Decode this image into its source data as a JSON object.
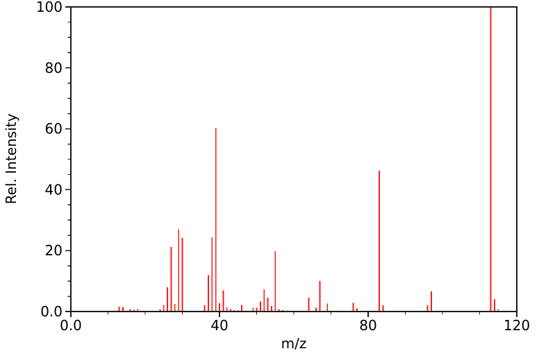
{
  "chart_data": {
    "type": "bar",
    "subtype": "mass-spectrum-stick-plot",
    "title": "",
    "xlabel": "m/z",
    "ylabel": "Rel. Intensity",
    "xlim": [
      0,
      120
    ],
    "ylim": [
      0,
      100
    ],
    "grid": false,
    "legend": "none",
    "x_major_ticks": [
      {
        "value": 0,
        "label": "0.0"
      },
      {
        "value": 40,
        "label": "40"
      },
      {
        "value": 80,
        "label": "80"
      },
      {
        "value": 120,
        "label": "120"
      }
    ],
    "x_minor_tick_step": 10,
    "y_major_ticks": [
      {
        "value": 0,
        "label": "0.0"
      },
      {
        "value": 20,
        "label": "20"
      },
      {
        "value": 40,
        "label": "40"
      },
      {
        "value": 60,
        "label": "60"
      },
      {
        "value": 80,
        "label": "80"
      },
      {
        "value": 100,
        "label": "100"
      }
    ],
    "y_minor_tick_step": 5,
    "peaks": [
      {
        "mz": 13,
        "intensity": 1.6
      },
      {
        "mz": 14,
        "intensity": 1.5
      },
      {
        "mz": 16,
        "intensity": 0.8
      },
      {
        "mz": 17,
        "intensity": 0.6
      },
      {
        "mz": 18,
        "intensity": 0.8
      },
      {
        "mz": 24,
        "intensity": 0.7
      },
      {
        "mz": 25,
        "intensity": 2.2
      },
      {
        "mz": 26,
        "intensity": 8.0
      },
      {
        "mz": 27,
        "intensity": 21.2
      },
      {
        "mz": 28,
        "intensity": 2.5
      },
      {
        "mz": 29,
        "intensity": 27.0
      },
      {
        "mz": 30,
        "intensity": 24.2
      },
      {
        "mz": 36,
        "intensity": 2.0
      },
      {
        "mz": 37,
        "intensity": 12.0
      },
      {
        "mz": 38,
        "intensity": 24.4
      },
      {
        "mz": 39,
        "intensity": 60.2
      },
      {
        "mz": 40,
        "intensity": 2.7
      },
      {
        "mz": 41,
        "intensity": 7.0
      },
      {
        "mz": 42,
        "intensity": 1.4
      },
      {
        "mz": 43,
        "intensity": 0.8
      },
      {
        "mz": 44,
        "intensity": 0.5
      },
      {
        "mz": 45,
        "intensity": 0.5
      },
      {
        "mz": 46,
        "intensity": 2.2
      },
      {
        "mz": 49,
        "intensity": 1.2
      },
      {
        "mz": 50,
        "intensity": 1.2
      },
      {
        "mz": 51,
        "intensity": 3.3
      },
      {
        "mz": 52,
        "intensity": 7.3
      },
      {
        "mz": 53,
        "intensity": 4.6
      },
      {
        "mz": 54,
        "intensity": 1.8
      },
      {
        "mz": 55,
        "intensity": 19.8
      },
      {
        "mz": 56,
        "intensity": 0.8
      },
      {
        "mz": 57,
        "intensity": 0.5
      },
      {
        "mz": 64,
        "intensity": 4.6
      },
      {
        "mz": 66,
        "intensity": 1.3
      },
      {
        "mz": 67,
        "intensity": 10.0
      },
      {
        "mz": 69,
        "intensity": 2.6
      },
      {
        "mz": 76,
        "intensity": 2.8
      },
      {
        "mz": 77,
        "intensity": 1.0
      },
      {
        "mz": 83,
        "intensity": 46.2
      },
      {
        "mz": 84,
        "intensity": 2.0
      },
      {
        "mz": 96,
        "intensity": 2.0
      },
      {
        "mz": 97,
        "intensity": 6.6
      },
      {
        "mz": 113,
        "intensity": 100.0
      },
      {
        "mz": 114,
        "intensity": 4.0
      },
      {
        "mz": 115,
        "intensity": 0.8
      }
    ]
  },
  "colors": {
    "peak": "#f02020",
    "axis": "#1a1a1a",
    "text": "#000000",
    "background": "#ffffff"
  }
}
